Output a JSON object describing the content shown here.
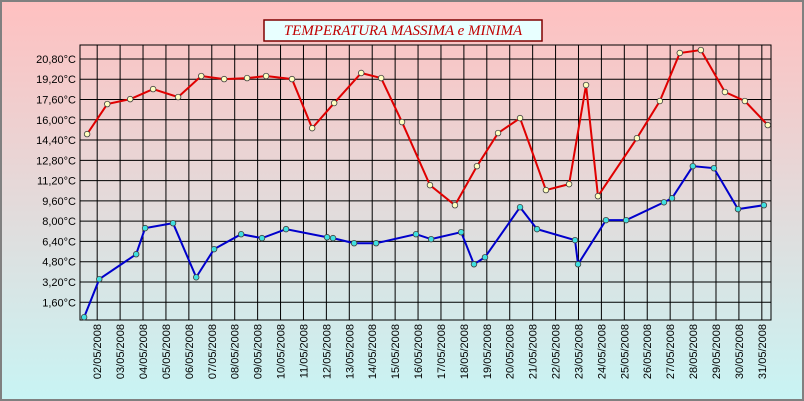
{
  "chart_data": {
    "type": "line",
    "title": "TEMPERATURA MASSIMA e MINIMA",
    "xlim": [
      1.25,
      31.4
    ],
    "ylim": [
      0.2,
      21.9
    ],
    "xticks": [
      {
        "value": 2,
        "label": "02/05/2008"
      },
      {
        "value": 3,
        "label": "03/05/2008"
      },
      {
        "value": 4,
        "label": "04/05/2008"
      },
      {
        "value": 5,
        "label": "05/05/2008"
      },
      {
        "value": 6,
        "label": "06/05/2008"
      },
      {
        "value": 7,
        "label": "07/05/2008"
      },
      {
        "value": 8,
        "label": "08/05/2008"
      },
      {
        "value": 9,
        "label": "09/05/2008"
      },
      {
        "value": 10,
        "label": "10/05/2008"
      },
      {
        "value": 11,
        "label": "11/05/2008"
      },
      {
        "value": 12,
        "label": "12/05/2008"
      },
      {
        "value": 13,
        "label": "13/05/2008"
      },
      {
        "value": 14,
        "label": "14/05/2008"
      },
      {
        "value": 15,
        "label": "15/05/2008"
      },
      {
        "value": 16,
        "label": "16/05/2008"
      },
      {
        "value": 17,
        "label": "17/05/2008"
      },
      {
        "value": 18,
        "label": "18/05/2008"
      },
      {
        "value": 19,
        "label": "19/05/2008"
      },
      {
        "value": 20,
        "label": "20/05/2008"
      },
      {
        "value": 21,
        "label": "21/05/2008"
      },
      {
        "value": 22,
        "label": "22/05/2008"
      },
      {
        "value": 23,
        "label": "23/05/2008"
      },
      {
        "value": 24,
        "label": "24/05/2008"
      },
      {
        "value": 25,
        "label": "25/05/2008"
      },
      {
        "value": 26,
        "label": "26/05/2008"
      },
      {
        "value": 27,
        "label": "27/05/2008"
      },
      {
        "value": 28,
        "label": "28/05/2008"
      },
      {
        "value": 29,
        "label": "29/05/2008"
      },
      {
        "value": 30,
        "label": "30/05/2008"
      },
      {
        "value": 31,
        "label": "31/05/2008"
      }
    ],
    "yticks": [
      {
        "value": 1.6,
        "label": "1,60°C"
      },
      {
        "value": 3.2,
        "label": "3,20°C"
      },
      {
        "value": 4.8,
        "label": "4,80°C"
      },
      {
        "value": 6.4,
        "label": "6,40°C"
      },
      {
        "value": 8.0,
        "label": "8,00°C"
      },
      {
        "value": 9.6,
        "label": "9,60°C"
      },
      {
        "value": 11.2,
        "label": "11,20°C"
      },
      {
        "value": 12.8,
        "label": "12,80°C"
      },
      {
        "value": 14.4,
        "label": "14,40°C"
      },
      {
        "value": 16.0,
        "label": "16,00°C"
      },
      {
        "value": 17.6,
        "label": "17,60°C"
      },
      {
        "value": 19.2,
        "label": "19,20°C"
      },
      {
        "value": 20.8,
        "label": "20,80°C"
      }
    ],
    "grid": true,
    "series": [
      {
        "color": "#e00000",
        "marker_color": "#ffffc0",
        "x": [
          1.56,
          2.44,
          3.44,
          4.44,
          5.53,
          6.54,
          7.54,
          8.54,
          9.37,
          10.5,
          11.38,
          12.34,
          13.52,
          14.39,
          15.3,
          16.52,
          17.61,
          18.57,
          19.49,
          20.45,
          21.58,
          22.59,
          23.33,
          23.85,
          25.55,
          26.55,
          27.42,
          28.34,
          29.39,
          30.26,
          31.26
        ],
        "values": [
          14.87,
          17.24,
          17.63,
          18.42,
          17.79,
          19.45,
          19.21,
          19.29,
          19.45,
          19.21,
          15.34,
          17.32,
          19.69,
          19.29,
          15.82,
          10.84,
          9.26,
          12.34,
          14.95,
          16.13,
          10.45,
          10.92,
          18.74,
          9.97,
          14.55,
          17.48,
          21.27,
          21.5,
          18.19,
          17.48,
          15.58
        ]
      },
      {
        "color": "#0000cc",
        "marker_color": "#40e0e0",
        "x": [
          1.43,
          2.09,
          3.7,
          4.09,
          5.31,
          6.32,
          7.1,
          8.28,
          9.19,
          10.24,
          12.03,
          12.29,
          13.21,
          14.17,
          15.91,
          16.57,
          17.88,
          18.44,
          18.92,
          20.45,
          21.19,
          22.85,
          22.98,
          24.2,
          25.08,
          26.73,
          27.08,
          27.99,
          28.91,
          29.96,
          31.09
        ],
        "values": [
          0.42,
          3.42,
          5.39,
          7.45,
          7.84,
          3.57,
          5.79,
          6.97,
          6.66,
          7.37,
          6.73,
          6.66,
          6.26,
          6.26,
          6.97,
          6.58,
          7.13,
          4.6,
          5.15,
          9.1,
          7.37,
          6.5,
          4.6,
          8.08,
          8.08,
          9.49,
          9.81,
          12.34,
          12.18,
          8.95,
          9.26
        ]
      }
    ]
  }
}
